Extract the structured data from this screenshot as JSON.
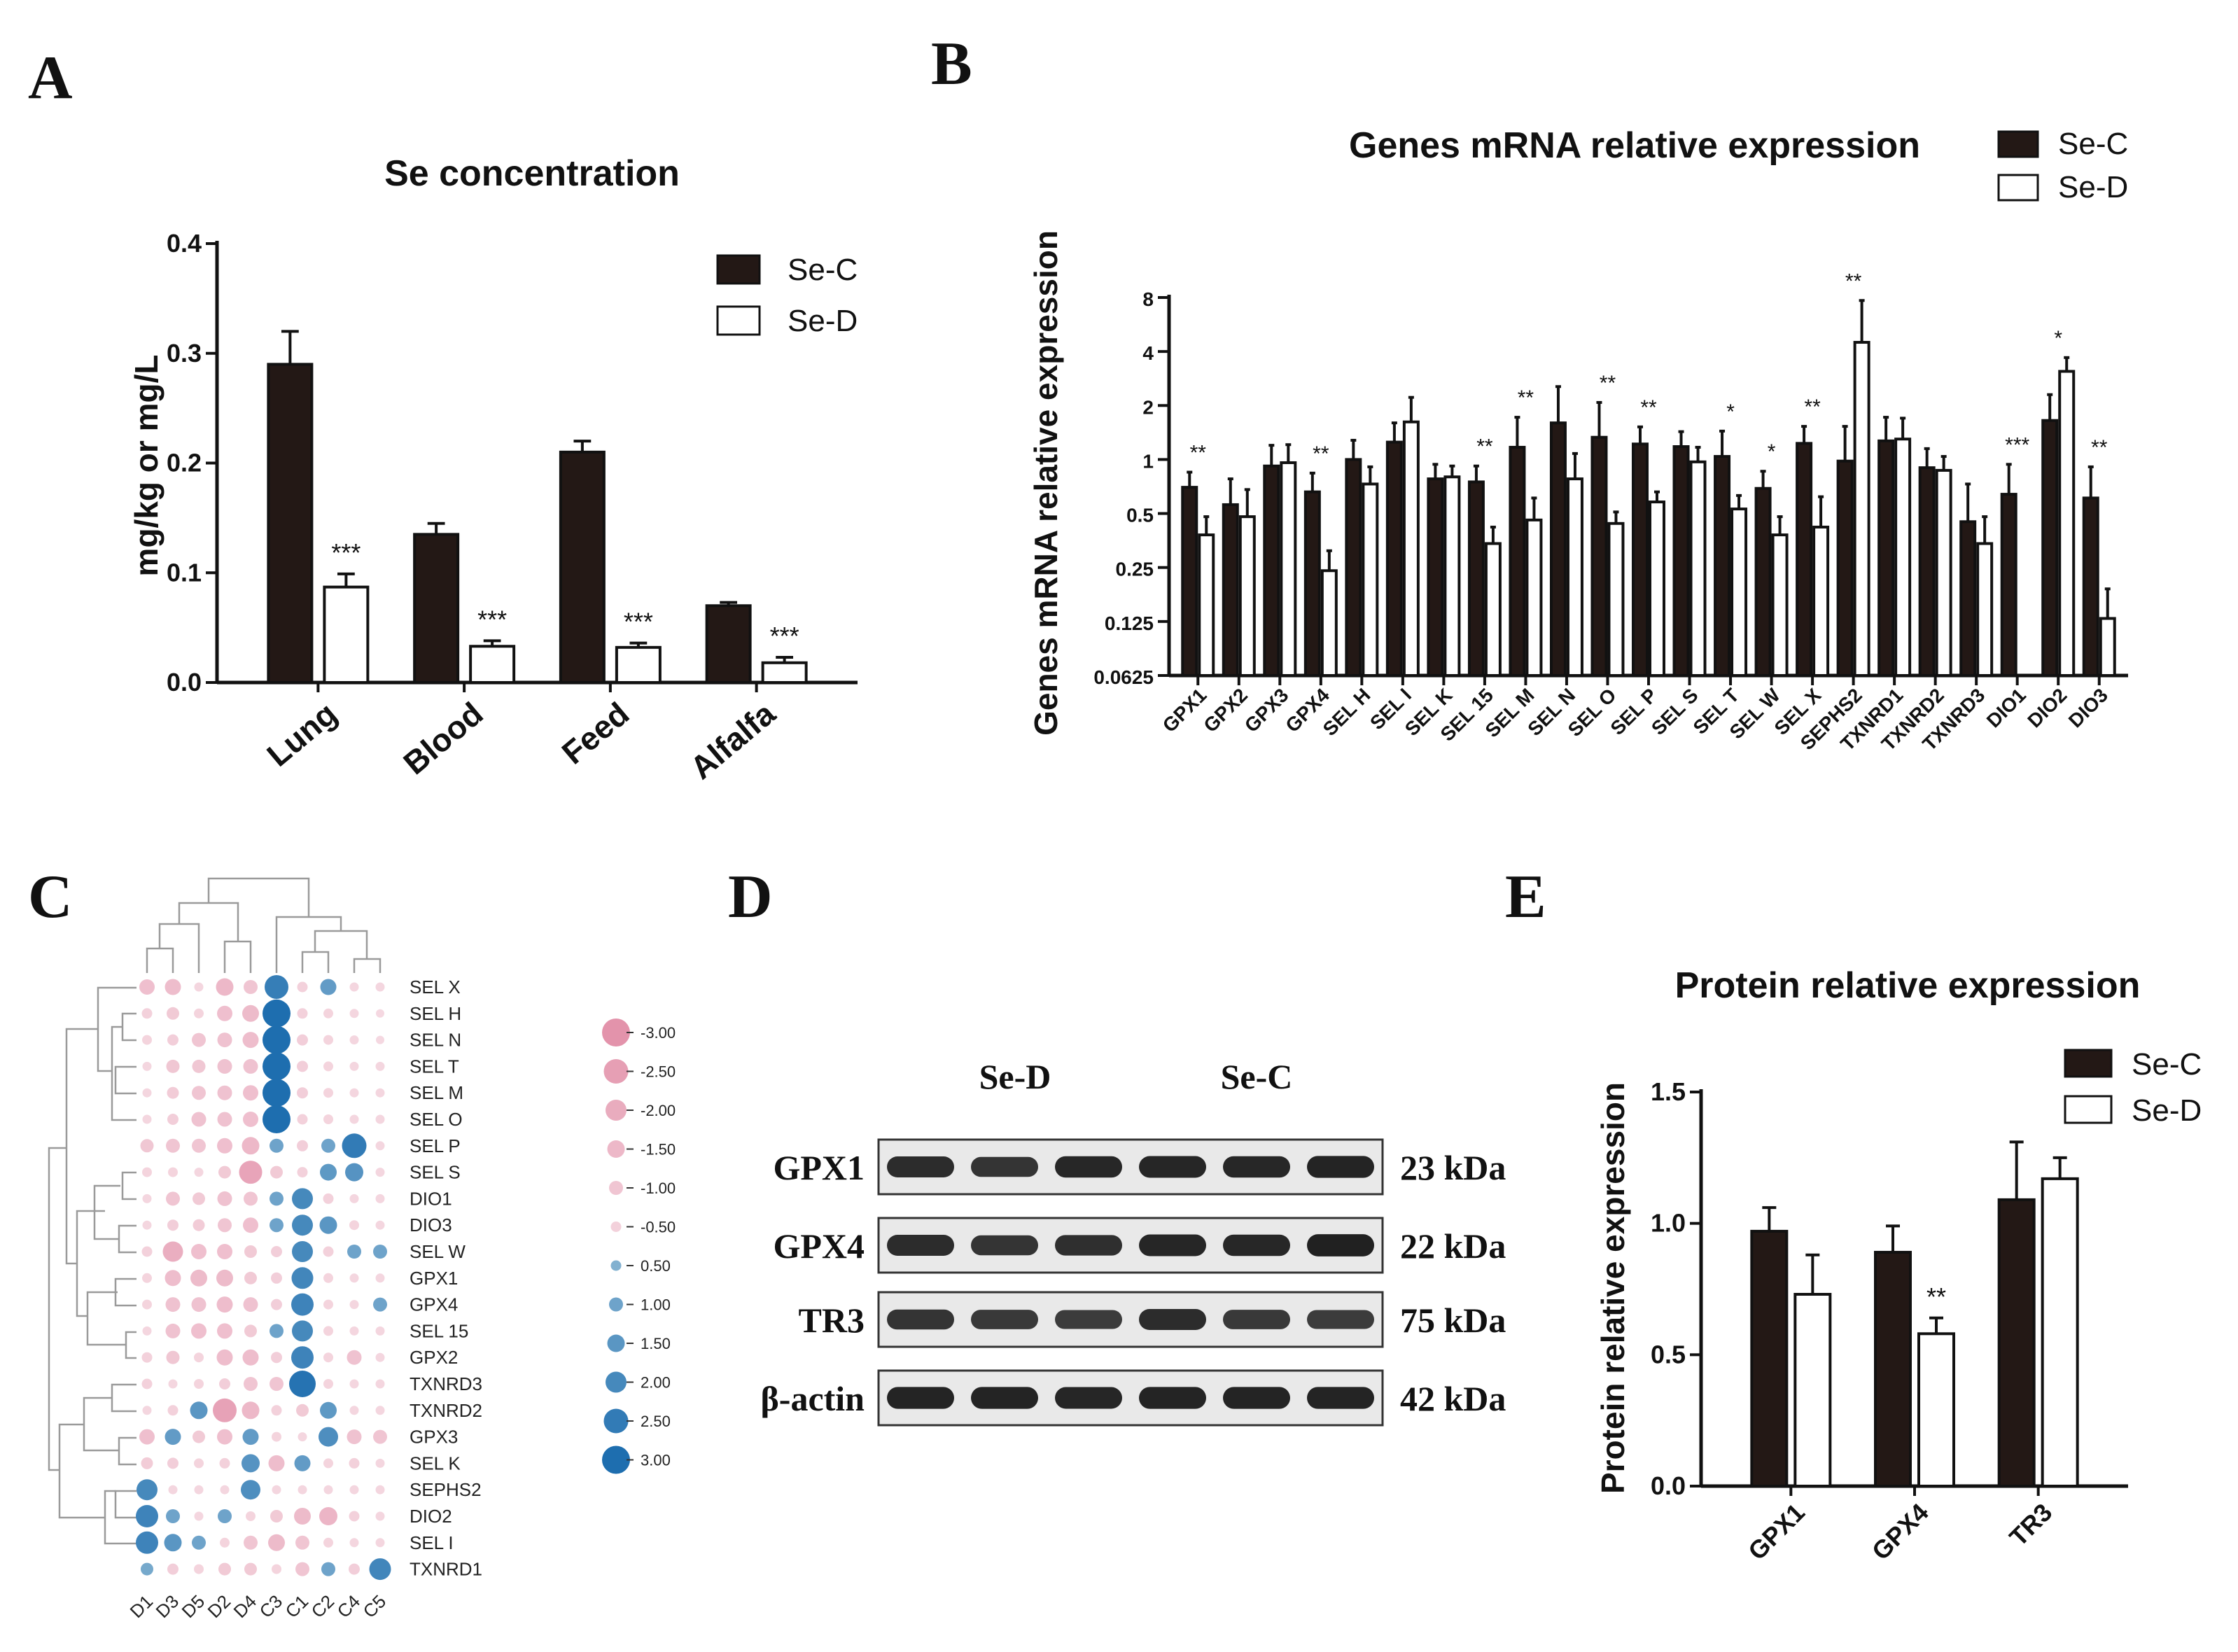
{
  "panels": {
    "a": "A",
    "b": "B",
    "c": "C",
    "d": "D",
    "e": "E"
  },
  "colors": {
    "se_c": "#231815",
    "se_d": "#ffffff",
    "pink": "#e8a4b8",
    "blue": "#2f6fa8"
  },
  "chart_data": [
    {
      "id": "A",
      "type": "bar",
      "title": "Se concentration",
      "ylabel": "mg/kg or mg/L",
      "xlabel": "",
      "categories": [
        "Lung",
        "Blood",
        "Feed",
        "Alfalfa"
      ],
      "ylim": [
        0,
        0.4
      ],
      "yticks": [
        0.0,
        0.1,
        0.2,
        0.3,
        0.4
      ],
      "ytick_labels": [
        "0.0",
        "0.1",
        "0.2",
        "0.3",
        "0.4"
      ],
      "legend": [
        "Se-C",
        "Se-D"
      ],
      "legend_position": "top-right",
      "series": [
        {
          "name": "Se-C",
          "values": [
            0.29,
            0.135,
            0.21,
            0.07
          ],
          "errors": [
            0.03,
            0.01,
            0.01,
            0.003
          ]
        },
        {
          "name": "Se-D",
          "values": [
            0.087,
            0.033,
            0.032,
            0.018
          ],
          "errors": [
            0.012,
            0.005,
            0.004,
            0.005
          ]
        }
      ],
      "annotations": [
        "***",
        "***",
        "***",
        "***"
      ]
    },
    {
      "id": "B",
      "type": "bar",
      "scale": "log2",
      "title": "Genes mRNA relative expression",
      "ylabel": "Genes mRNA relative expression",
      "xlabel": "",
      "categories": [
        "GPX1",
        "GPX2",
        "GPX3",
        "GPX4",
        "SEL H",
        "SEL I",
        "SEL K",
        "SEL 15",
        "SEL M",
        "SEL N",
        "SEL O",
        "SEL P",
        "SEL S",
        "SEL T",
        "SEL W",
        "SEL X",
        "SEPHS2",
        "TXNRD1",
        "TXNRD2",
        "TXNRD3",
        "DIO1",
        "DIO2",
        "DIO3"
      ],
      "ylim": [
        0.0625,
        8
      ],
      "yticks": [
        0.0625,
        0.125,
        0.25,
        0.5,
        1,
        2,
        4,
        8
      ],
      "ytick_labels": [
        "0.0625",
        "0.125",
        "0.25",
        "0.5",
        "1",
        "2",
        "4",
        "8"
      ],
      "legend": [
        "Se-C",
        "Se-D"
      ],
      "legend_position": "top-right",
      "series": [
        {
          "name": "Se-C",
          "values": [
            0.7,
            0.56,
            0.92,
            0.66,
            1.0,
            1.25,
            0.78,
            0.75,
            1.17,
            1.6,
            1.33,
            1.22,
            1.18,
            1.04,
            0.69,
            1.23,
            0.98,
            1.27,
            0.9,
            0.45,
            0.64,
            1.65,
            0.61
          ],
          "errors": [
            0.15,
            0.22,
            0.28,
            0.18,
            0.28,
            0.35,
            0.16,
            0.17,
            0.55,
            0.95,
            0.75,
            0.3,
            0.25,
            0.4,
            0.17,
            0.3,
            0.55,
            0.45,
            0.25,
            0.28,
            0.3,
            0.65,
            0.3
          ]
        },
        {
          "name": "Se-D",
          "values": [
            0.38,
            0.48,
            0.96,
            0.24,
            0.73,
            1.62,
            0.8,
            0.34,
            0.46,
            0.78,
            0.44,
            0.58,
            0.97,
            0.53,
            0.38,
            0.42,
            4.5,
            1.3,
            0.87,
            0.34,
            0.06,
            3.1,
            0.13
          ],
          "errors": [
            0.1,
            0.2,
            0.25,
            0.07,
            0.18,
            0.6,
            0.12,
            0.08,
            0.15,
            0.3,
            0.07,
            0.08,
            0.2,
            0.1,
            0.1,
            0.2,
            3.2,
            0.4,
            0.17,
            0.14,
            0.0,
            0.6,
            0.06
          ]
        }
      ],
      "annotations": [
        "**",
        "",
        "",
        "**",
        "",
        "",
        "",
        "**",
        "**",
        "",
        "**",
        "**",
        "",
        "*",
        "*",
        "**",
        "**",
        "",
        "",
        "",
        "***",
        "*",
        "**"
      ]
    },
    {
      "id": "C",
      "type": "heatmap",
      "columns": [
        "D1",
        "D3",
        "D5",
        "D2",
        "D4",
        "C3",
        "C1",
        "C2",
        "C4",
        "C5"
      ],
      "rows": [
        "SEL X",
        "SEL H",
        "SEL N",
        "SEL T",
        "SEL M",
        "SEL O",
        "SEL P",
        "SEL S",
        "DIO1",
        "DIO3",
        "SEL W",
        "GPX1",
        "GPX4",
        "SEL 15",
        "GPX2",
        "TXNRD3",
        "TXNRD2",
        "GPX3",
        "SEL K",
        "SEPHS2",
        "DIO2",
        "SEL I",
        "TXNRD1"
      ],
      "values": [
        [
          -1.2,
          -1.3,
          -0.3,
          -1.5,
          -1.0,
          2.4,
          -0.5,
          1.3,
          -0.3,
          -0.3
        ],
        [
          -0.5,
          -0.8,
          -0.4,
          -1.2,
          -1.4,
          3.0,
          -0.5,
          -0.4,
          -0.3,
          -0.2
        ],
        [
          -0.4,
          -0.6,
          -1.0,
          -1.1,
          -1.3,
          3.0,
          -0.6,
          -0.4,
          -0.3,
          -0.2
        ],
        [
          -0.3,
          -0.9,
          -0.9,
          -1.1,
          -1.1,
          3.0,
          -0.6,
          -0.4,
          -0.3,
          -0.3
        ],
        [
          -0.3,
          -0.7,
          -1.0,
          -1.1,
          -1.2,
          3.0,
          -0.6,
          -0.4,
          -0.3,
          -0.3
        ],
        [
          -0.3,
          -0.6,
          -1.1,
          -1.1,
          -1.2,
          3.0,
          -0.5,
          -0.4,
          -0.3,
          -0.3
        ],
        [
          -0.9,
          -1.0,
          -1.0,
          -1.2,
          -1.5,
          1.0,
          -0.6,
          1.0,
          2.5,
          -0.3
        ],
        [
          -0.4,
          -0.4,
          -0.3,
          -0.8,
          -2.3,
          -0.8,
          -0.5,
          1.4,
          1.6,
          -0.3
        ],
        [
          -0.3,
          -1.0,
          -0.8,
          -1.1,
          -1.0,
          1.0,
          2.0,
          -0.5,
          -0.3,
          -0.3
        ],
        [
          -0.3,
          -0.6,
          -0.7,
          -1.0,
          -1.2,
          1.0,
          2.0,
          1.5,
          -0.4,
          -0.3
        ],
        [
          -0.5,
          -1.9,
          -1.2,
          -1.2,
          -0.8,
          -0.6,
          2.0,
          -0.5,
          1.0,
          1.0
        ],
        [
          -0.4,
          -1.3,
          -1.4,
          -1.4,
          -0.8,
          -0.6,
          2.1,
          -0.4,
          -0.3,
          -0.3
        ],
        [
          -0.4,
          -1.1,
          -1.1,
          -1.3,
          -1.1,
          -0.6,
          2.2,
          -0.4,
          -0.3,
          1.0
        ],
        [
          -0.3,
          -1.1,
          -1.2,
          -1.2,
          -0.8,
          1.0,
          2.0,
          -0.4,
          -0.3,
          -0.3
        ],
        [
          -0.5,
          -0.9,
          -0.4,
          -1.3,
          -1.3,
          -0.6,
          2.2,
          -0.4,
          -1.1,
          -0.3
        ],
        [
          -0.5,
          -0.3,
          -0.4,
          -0.6,
          -1.0,
          -1.0,
          2.8,
          -0.4,
          -0.3,
          -0.3
        ],
        [
          -0.3,
          -0.5,
          1.5,
          -2.4,
          -1.5,
          -0.5,
          -0.8,
          1.4,
          -0.3,
          -0.3
        ],
        [
          -1.2,
          1.3,
          -0.8,
          -1.2,
          1.3,
          -0.4,
          -0.3,
          1.8,
          -1.1,
          -1.0
        ],
        [
          -0.7,
          -0.6,
          -0.4,
          -0.5,
          1.6,
          -1.3,
          1.3,
          -0.4,
          -0.5,
          -0.3
        ],
        [
          2.0,
          -0.3,
          -0.3,
          -0.3,
          1.8,
          -0.3,
          -0.3,
          -0.3,
          -0.3,
          -0.3
        ],
        [
          2.2,
          1.0,
          -0.3,
          1.0,
          -0.4,
          -0.8,
          -1.4,
          -1.6,
          -0.5,
          -0.3
        ],
        [
          2.2,
          1.5,
          1.0,
          -0.4,
          -1.0,
          -1.4,
          -1.0,
          -0.4,
          -0.3,
          -0.3
        ],
        [
          0.8,
          -0.6,
          -0.4,
          -0.8,
          -0.8,
          -0.4,
          -1.0,
          1.0,
          -0.6,
          2.1
        ]
      ],
      "legend_values": [
        -3.0,
        -2.5,
        -2.0,
        -1.5,
        -1.0,
        -0.5,
        0.5,
        1.0,
        1.5,
        2.0,
        2.5,
        3.0
      ],
      "legend_labels": [
        "-3.00",
        "-2.50",
        "-2.00",
        "-1.50",
        "-1.00",
        "-0.50",
        "0.50",
        "1.00",
        "1.50",
        "2.00",
        "2.50",
        "3.00"
      ]
    },
    {
      "id": "E",
      "type": "bar",
      "title": "Protein relative expression",
      "ylabel": "Protein relative expression",
      "xlabel": "",
      "categories": [
        "GPX1",
        "GPX4",
        "TR3"
      ],
      "ylim": [
        0,
        1.5
      ],
      "yticks": [
        0.0,
        0.5,
        1.0,
        1.5
      ],
      "ytick_labels": [
        "0.0",
        "0.5",
        "1.0",
        "1.5"
      ],
      "legend": [
        "Se-C",
        "Se-D"
      ],
      "legend_position": "top-right",
      "series": [
        {
          "name": "Se-C",
          "values": [
            0.97,
            0.89,
            1.09
          ],
          "errors": [
            0.09,
            0.1,
            0.22
          ]
        },
        {
          "name": "Se-D",
          "values": [
            0.73,
            0.58,
            1.17
          ],
          "errors": [
            0.15,
            0.06,
            0.08
          ]
        }
      ],
      "annotations": [
        "",
        "**",
        ""
      ]
    }
  ],
  "western_blot": {
    "groups": [
      "Se-D",
      "Se-C"
    ],
    "rows": [
      {
        "protein": "GPX1",
        "size": "23 kDa",
        "intensity": [
          0.85,
          0.75,
          0.9,
          0.92,
          0.9,
          0.95
        ]
      },
      {
        "protein": "GPX4",
        "size": "22 kDa",
        "intensity": [
          0.85,
          0.75,
          0.8,
          0.92,
          0.9,
          0.98
        ]
      },
      {
        "protein": "TR3",
        "size": "75 kDa",
        "intensity": [
          0.75,
          0.7,
          0.65,
          0.85,
          0.7,
          0.65
        ]
      },
      {
        "protein": "β-actin",
        "size": "42 kDa",
        "intensity": [
          0.95,
          0.95,
          0.92,
          0.95,
          0.95,
          0.95
        ]
      }
    ]
  }
}
